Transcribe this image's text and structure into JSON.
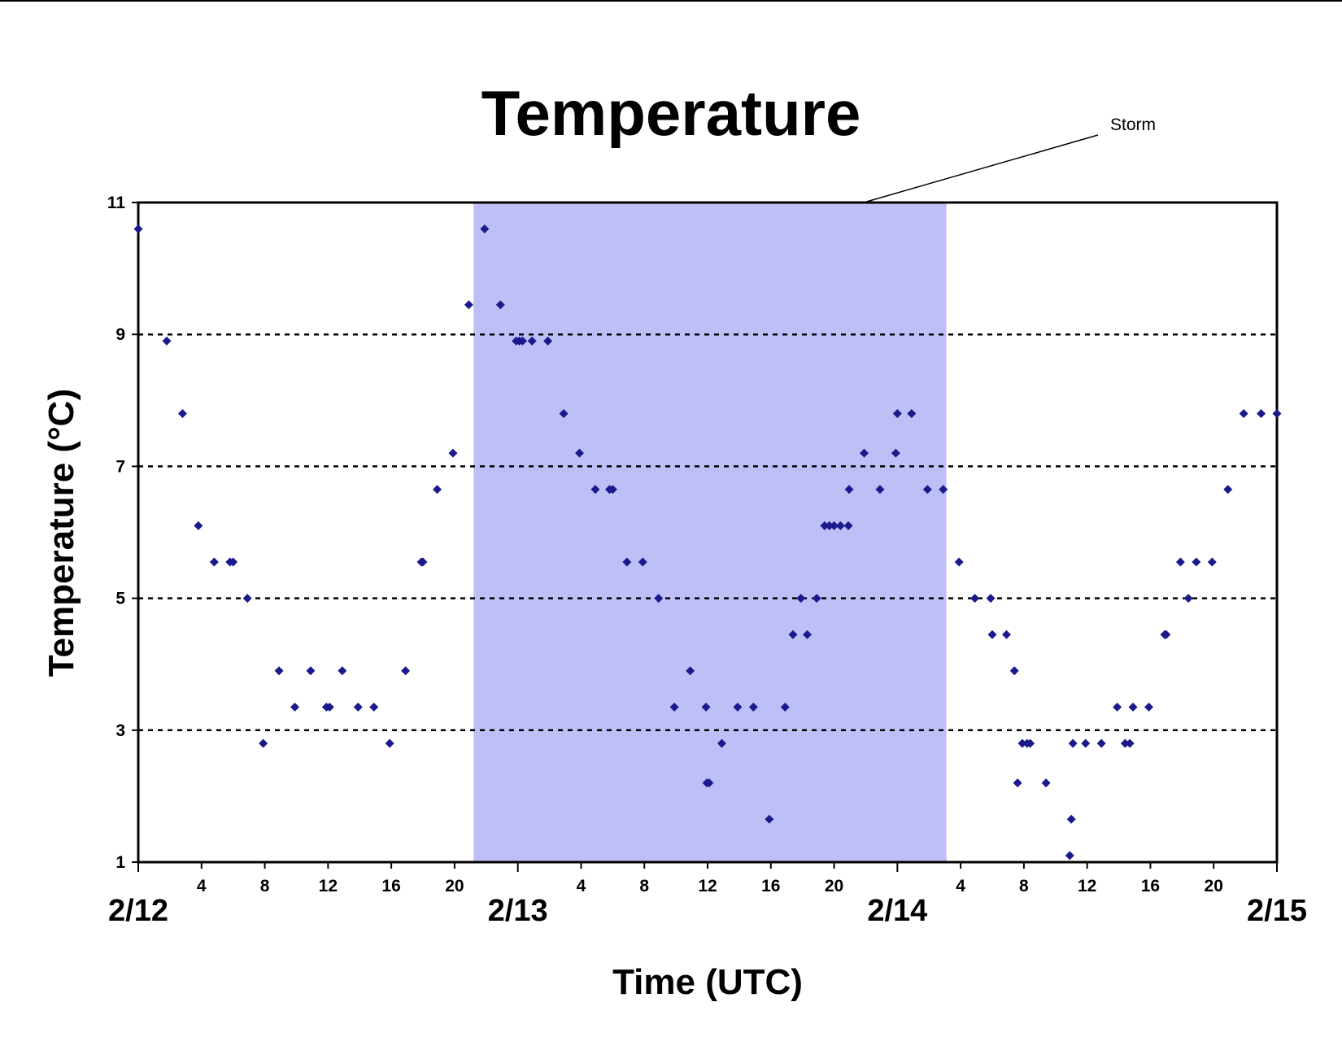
{
  "chart_data": {
    "type": "scatter",
    "title": "Temperature",
    "xlabel": "Time (UTC)",
    "ylabel": "Temperature (°C)",
    "ylim": [
      1,
      11
    ],
    "yticks": [
      1,
      3,
      5,
      7,
      9,
      11
    ],
    "xlim_hours": [
      0,
      72
    ],
    "x_hour_tick_labels": [
      "4",
      "8",
      "12",
      "16",
      "20"
    ],
    "day_labels": [
      "2/12",
      "2/13",
      "2/14",
      "2/15"
    ],
    "grid": "horizontal dashed at 3, 5, 7, 9",
    "legend": "none",
    "marker_color": "#1a1a8c",
    "shaded_region": {
      "label": "Storm",
      "start_hour": 21.2,
      "end_hour": 51.1,
      "color": "#bfbff8"
    },
    "annotation": "Storm",
    "series": [
      {
        "x": [
          0,
          1.8,
          2.8,
          3.8,
          4.8,
          5.8,
          6,
          6.9,
          7.9,
          8.9,
          9.9,
          10.9,
          11.9,
          12.1,
          12.9,
          13.9,
          14.9,
          15.9,
          16.9,
          17.9,
          18,
          18.9,
          19.9,
          20.9,
          21.9,
          22.9,
          23.9,
          24.1,
          24.3,
          24.9,
          25.9,
          26.9,
          27.9,
          28.9,
          29.8,
          30,
          30.9,
          31.9,
          32.9,
          33.9,
          34.9,
          35.9,
          35.95,
          36.1,
          36.9,
          37.9,
          38.9,
          39.9,
          40.9,
          41.4,
          41.9,
          42.3,
          42.9,
          43.4,
          43.7,
          44,
          44.4,
          44.9,
          44.95,
          45.9,
          46.9,
          47.9,
          48,
          48.9,
          49.9,
          50.9,
          51.9,
          52.9,
          53.9,
          54,
          54.9,
          55.4,
          55.6,
          55.9,
          56.2,
          56.4,
          57.4,
          58.9,
          59,
          59.1,
          59.9,
          60.9,
          61.9,
          62.4,
          62.7,
          62.9,
          63.9,
          64.9,
          65,
          65.9,
          66.4,
          66.9,
          67.9,
          68.9,
          69.9,
          71,
          72
        ],
        "y": [
          10.6,
          8.9,
          7.8,
          6.1,
          5.55,
          5.55,
          5.55,
          5.0,
          2.8,
          3.9,
          3.35,
          3.9,
          3.35,
          3.35,
          3.9,
          3.35,
          3.35,
          2.8,
          3.9,
          5.55,
          5.55,
          6.65,
          7.2,
          9.45,
          10.6,
          9.45,
          8.9,
          8.9,
          8.9,
          8.9,
          8.9,
          7.8,
          7.2,
          6.65,
          6.65,
          6.65,
          5.55,
          5.55,
          5.0,
          3.35,
          3.9,
          3.35,
          2.2,
          2.2,
          2.8,
          3.35,
          3.35,
          1.65,
          3.35,
          4.45,
          5.0,
          4.45,
          5.0,
          6.1,
          6.1,
          6.1,
          6.1,
          6.1,
          6.65,
          7.2,
          6.65,
          7.2,
          7.8,
          7.8,
          6.65,
          6.65,
          5.55,
          5.0,
          5.0,
          4.45,
          4.45,
          3.9,
          2.2,
          2.8,
          2.8,
          2.8,
          2.2,
          1.1,
          1.65,
          2.8,
          2.8,
          2.8,
          3.35,
          2.8,
          2.8,
          3.35,
          3.35,
          4.45,
          4.45,
          5.55,
          5.0,
          5.55,
          5.55,
          6.65,
          7.8,
          7.8,
          7.8
        ]
      }
    ]
  }
}
